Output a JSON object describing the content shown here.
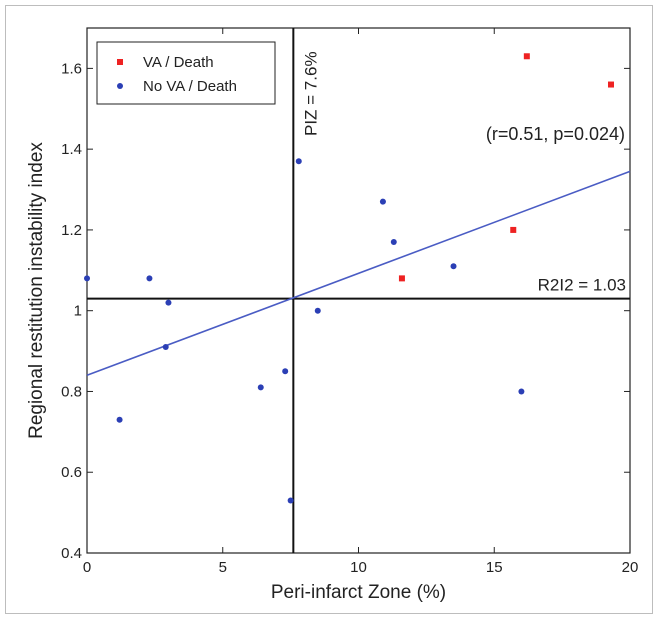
{
  "chart_data": {
    "type": "scatter",
    "title": "",
    "xlabel": "Peri-infarct Zone (%)",
    "ylabel": "Regional restitution instability index",
    "xlim": [
      0,
      20
    ],
    "ylim": [
      0.4,
      1.7
    ],
    "xticks": [
      "0",
      "5",
      "10",
      "15",
      "20"
    ],
    "yticks": [
      "0.4",
      "0.6",
      "0.8",
      "1",
      "1.2",
      "1.4",
      "1.6"
    ],
    "series": [
      {
        "name": "VA / Death",
        "color": "#ee2222",
        "marker": "square",
        "points": [
          {
            "x": 16.2,
            "y": 1.63
          },
          {
            "x": 19.3,
            "y": 1.56
          },
          {
            "x": 15.7,
            "y": 1.2
          },
          {
            "x": 11.6,
            "y": 1.08
          }
        ]
      },
      {
        "name": "No VA / Death",
        "color": "#2b3fb5",
        "marker": "circle",
        "points": [
          {
            "x": 0.0,
            "y": 1.08
          },
          {
            "x": 1.2,
            "y": 0.73
          },
          {
            "x": 2.3,
            "y": 1.08
          },
          {
            "x": 2.9,
            "y": 0.91
          },
          {
            "x": 3.0,
            "y": 1.02
          },
          {
            "x": 6.4,
            "y": 0.81
          },
          {
            "x": 7.3,
            "y": 0.85
          },
          {
            "x": 7.5,
            "y": 0.53
          },
          {
            "x": 7.8,
            "y": 1.37
          },
          {
            "x": 8.5,
            "y": 1.0
          },
          {
            "x": 10.9,
            "y": 1.27
          },
          {
            "x": 11.3,
            "y": 1.17
          },
          {
            "x": 13.5,
            "y": 1.11
          },
          {
            "x": 16.0,
            "y": 0.8
          }
        ]
      }
    ],
    "regression_line": {
      "color": "#4a5cc4",
      "x": [
        0,
        20
      ],
      "y": [
        0.84,
        1.345
      ]
    },
    "reference_lines": [
      {
        "orientation": "vertical",
        "value": 7.6,
        "label": "PIZ = 7.6%"
      },
      {
        "orientation": "horizontal",
        "value": 1.03,
        "label": "R2I2 = 1.03"
      }
    ],
    "annotation": "(r=0.51, p=0.024)",
    "legend_position": "top-left",
    "grid": false
  }
}
